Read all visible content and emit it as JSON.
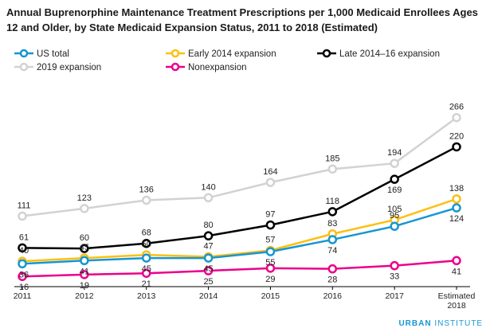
{
  "chart_data": {
    "type": "line",
    "title": "Annual Buprenorphine Maintenance Treatment Prescriptions per 1,000 Medicaid Enrollees Ages 12 and Older, by State Medicaid Expansion Status, 2011 to 2018 (Estimated)",
    "categories": [
      "2011",
      "2012",
      "2013",
      "2014",
      "2015",
      "2016",
      "2017",
      "Estimated 2018"
    ],
    "ylim": [
      0,
      290
    ],
    "grid": false,
    "legend_position": "top",
    "series": [
      {
        "name": "US total",
        "color": "#1696d2",
        "values": [
          36,
          41,
          45,
          45,
          55,
          74,
          95,
          124
        ],
        "label_side": [
          "below",
          "below",
          "below",
          "below",
          "below",
          "below",
          "above",
          "below"
        ]
      },
      {
        "name": "Early 2014 expansion",
        "color": "#fdbf11",
        "values": [
          40,
          45,
          50,
          47,
          57,
          83,
          105,
          138
        ],
        "label_side": [
          "above",
          "above",
          "above",
          "above",
          "above",
          "above",
          "above",
          "above"
        ]
      },
      {
        "name": "Late 2014–16 expansion",
        "color": "#000000",
        "values": [
          61,
          60,
          68,
          80,
          97,
          118,
          169,
          220
        ],
        "label_side": [
          "above",
          "above",
          "above",
          "above",
          "above",
          "above",
          "below",
          "above"
        ]
      },
      {
        "name": "2019 expansion",
        "color": "#d2d2d2",
        "values": [
          111,
          123,
          136,
          140,
          164,
          185,
          194,
          266
        ],
        "label_side": [
          "above",
          "above",
          "above",
          "above",
          "above",
          "above",
          "above",
          "above"
        ]
      },
      {
        "name": "Nonexpansion",
        "color": "#ec008b",
        "values": [
          16,
          19,
          21,
          25,
          29,
          28,
          33,
          41
        ],
        "label_side": [
          "below",
          "below",
          "below",
          "below",
          "below",
          "below",
          "below",
          "below"
        ]
      }
    ]
  },
  "brand": {
    "part1": "URBAN",
    "part2": "INSTITUTE"
  }
}
